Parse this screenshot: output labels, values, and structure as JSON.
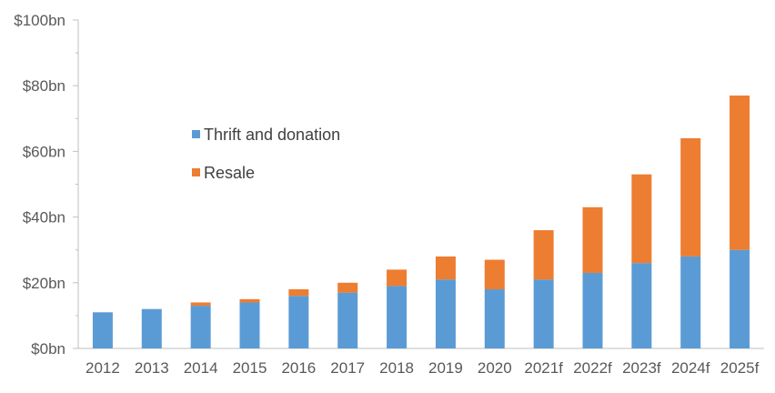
{
  "chart_data": {
    "type": "bar",
    "stacked": true,
    "categories": [
      "2012",
      "2013",
      "2014",
      "2015",
      "2016",
      "2017",
      "2018",
      "2019",
      "2020",
      "2021f",
      "2022f",
      "2023f",
      "2024f",
      "2025f"
    ],
    "series": [
      {
        "name": "Thrift and donation",
        "color": "#5b9bd5",
        "values": [
          11,
          12,
          13,
          14,
          16,
          17,
          19,
          21,
          18,
          21,
          23,
          26,
          28,
          30
        ]
      },
      {
        "name": "Resale",
        "color": "#ed7d31",
        "values": [
          0,
          0,
          1,
          1,
          2,
          3,
          5,
          7,
          9,
          15,
          20,
          27,
          36,
          47
        ]
      }
    ],
    "ylim": [
      0,
      100
    ],
    "yticks": [
      0,
      20,
      40,
      60,
      80,
      100
    ],
    "ytick_labels": [
      "$0bn",
      "$20bn",
      "$40bn",
      "$60bn",
      "$80bn",
      "$100bn"
    ],
    "grid": false,
    "legend_position": "upper-left-inside",
    "title": "",
    "xlabel": "",
    "ylabel": ""
  }
}
